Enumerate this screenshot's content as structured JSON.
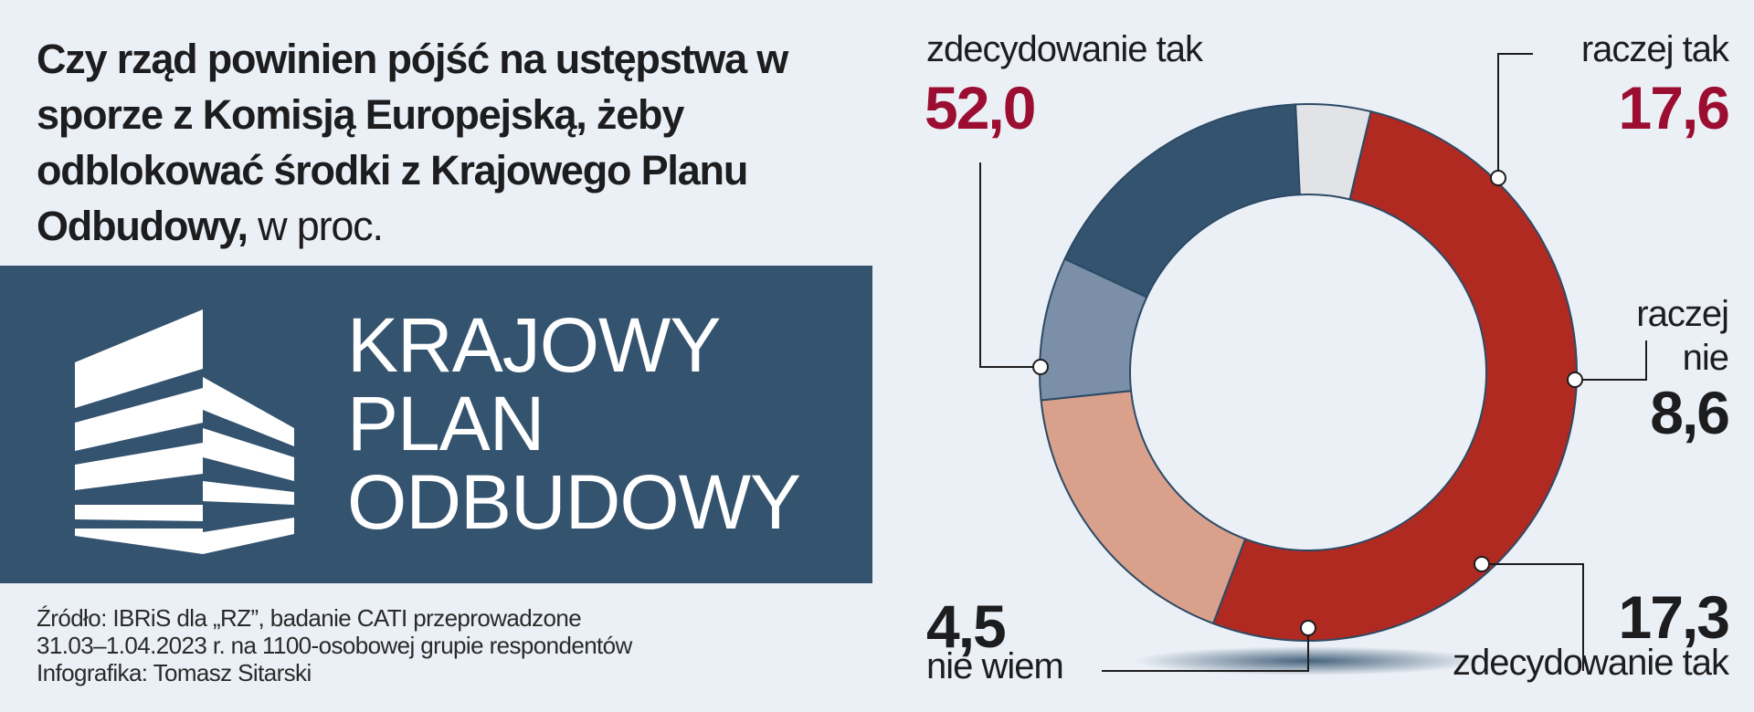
{
  "title": {
    "bold": "Czy rząd powinien pójść na ustępstwa w sporze z Komisją Europejską, żeby odblokować środki z Krajowego Planu Odbudowy,",
    "unit": " w proc."
  },
  "banner": {
    "lines": [
      "KRAJOWY",
      "PLAN",
      "ODBUDOWY"
    ],
    "icon": "building-logo-icon"
  },
  "source": {
    "lines": [
      "Źródło: IBRiS dla „RZ”, badanie CATI przeprowadzone",
      "31.03–1.04.2023 r. na 1100-osobowej grupie respondentów",
      "Infografika: Tomasz Sitarski"
    ]
  },
  "chart_data": {
    "type": "pie",
    "donut": true,
    "unit": "w proc.",
    "slices": [
      {
        "label": "zdecydowanie tak",
        "value": 52.0,
        "display": "52,0",
        "color": "#b02a22",
        "label_color": "#9b0e32"
      },
      {
        "label": "raczej tak",
        "value": 17.6,
        "display": "17,6",
        "color": "#d9a08b",
        "label_color": "#9b0e32"
      },
      {
        "label": "raczej nie",
        "label_lines": [
          "raczej",
          "nie"
        ],
        "value": 8.6,
        "display": "8,6",
        "color": "#7b90a8",
        "label_color": "#1d1d1f"
      },
      {
        "label": "zdecydowanie tak",
        "value": 17.3,
        "display": "17,3",
        "color": "#34536f",
        "label_color": "#1d1d1f"
      },
      {
        "label": "nie wiem",
        "value": 4.5,
        "display": "4,5",
        "color": "#e2e3e6",
        "label_color": "#1d1d1f"
      }
    ]
  }
}
